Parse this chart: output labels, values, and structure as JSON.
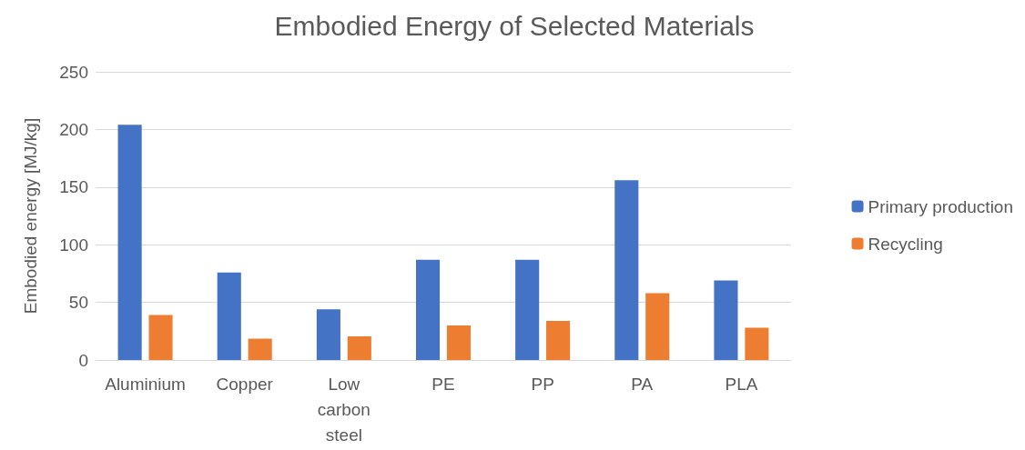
{
  "chart_data": {
    "type": "bar",
    "title": "Embodied Energy of Selected Materials",
    "ylabel": "Embodied energy [MJ/kg]",
    "categories": [
      "Aluminium",
      "Copper",
      "Low carbon steel",
      "PE",
      "PP",
      "PA",
      "PLA"
    ],
    "series": [
      {
        "name": "Primary production",
        "color": "#4472c4",
        "values": [
          204,
          76,
          44,
          87,
          87,
          156,
          69
        ]
      },
      {
        "name": "Recycling",
        "color": "#ed7d31",
        "values": [
          39,
          18.5,
          20.5,
          30,
          34,
          58,
          28
        ]
      }
    ],
    "ylim": [
      0,
      250
    ],
    "yticks": [
      0,
      50,
      100,
      150,
      200,
      250
    ],
    "grid": "y",
    "legend": "right"
  }
}
